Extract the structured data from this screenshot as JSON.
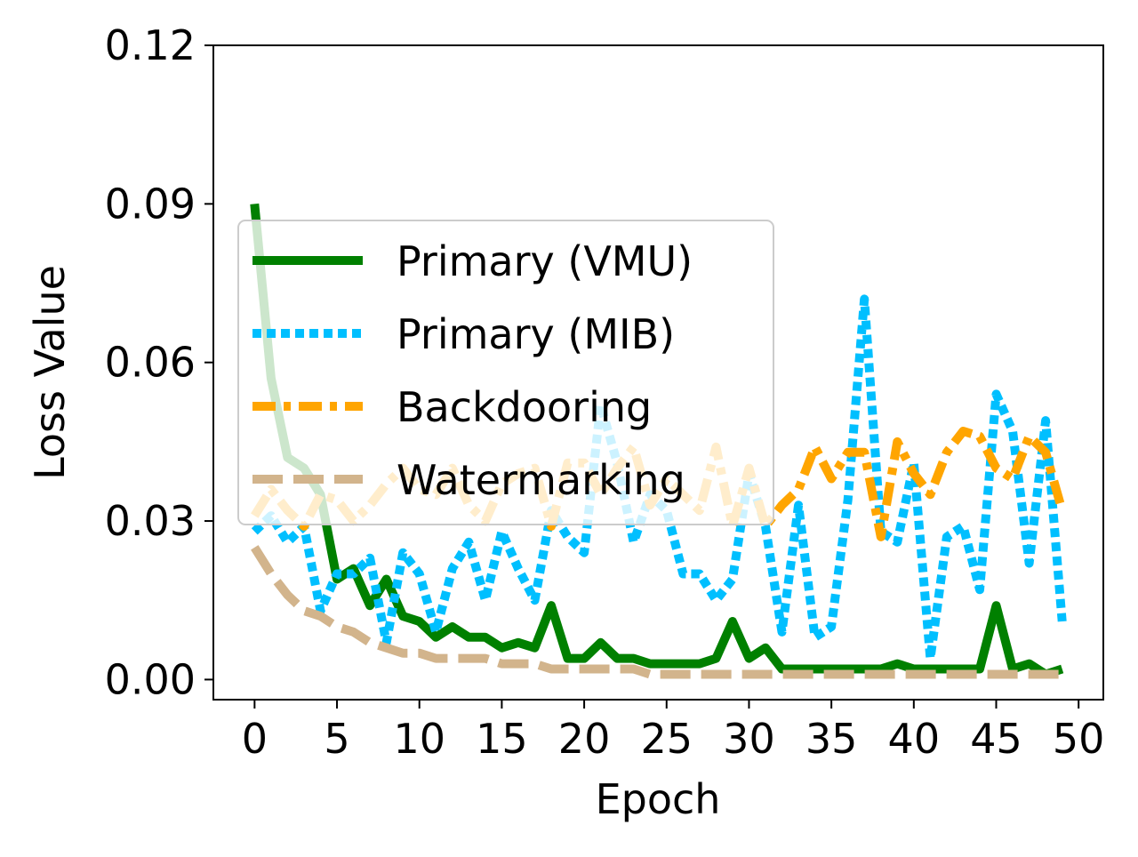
{
  "chart_data": {
    "type": "line",
    "title": "",
    "xlabel": "Epoch",
    "ylabel": "Loss Value",
    "xlim": [
      -2.5,
      51.5
    ],
    "ylim": [
      -0.0038,
      0.12
    ],
    "xticks": [
      0,
      5,
      10,
      15,
      20,
      25,
      30,
      35,
      40,
      45,
      50
    ],
    "xtick_labels": [
      "0",
      "5",
      "10",
      "15",
      "20",
      "25",
      "30",
      "35",
      "40",
      "45",
      "50"
    ],
    "yticks": [
      0.0,
      0.03,
      0.06,
      0.09,
      0.12
    ],
    "ytick_labels": [
      "0.00",
      "0.03",
      "0.06",
      "0.09",
      "0.12"
    ],
    "grid": false,
    "legend_position": "upper-left",
    "x": [
      0,
      1,
      2,
      3,
      4,
      5,
      6,
      7,
      8,
      9,
      10,
      11,
      12,
      13,
      14,
      15,
      16,
      17,
      18,
      19,
      20,
      21,
      22,
      23,
      24,
      25,
      26,
      27,
      28,
      29,
      30,
      31,
      32,
      33,
      34,
      35,
      36,
      37,
      38,
      39,
      40,
      41,
      42,
      43,
      44,
      45,
      46,
      47,
      48,
      49
    ],
    "series": [
      {
        "name": "Primary (VMU)",
        "color": "#008000",
        "dash": "solid",
        "values": [
          0.09,
          0.057,
          0.042,
          0.04,
          0.035,
          0.019,
          0.021,
          0.014,
          0.019,
          0.012,
          0.011,
          0.008,
          0.01,
          0.008,
          0.008,
          0.006,
          0.007,
          0.006,
          0.014,
          0.004,
          0.004,
          0.007,
          0.004,
          0.004,
          0.003,
          0.003,
          0.003,
          0.003,
          0.004,
          0.011,
          0.004,
          0.006,
          0.002,
          0.002,
          0.002,
          0.002,
          0.002,
          0.002,
          0.002,
          0.003,
          0.002,
          0.002,
          0.002,
          0.002,
          0.002,
          0.014,
          0.002,
          0.003,
          0.001,
          0.002
        ]
      },
      {
        "name": "Primary (MIB)",
        "color": "#00BFFF",
        "dash": "dotted",
        "values": [
          0.028,
          0.031,
          0.026,
          0.029,
          0.013,
          0.02,
          0.02,
          0.023,
          0.007,
          0.024,
          0.02,
          0.009,
          0.021,
          0.026,
          0.015,
          0.028,
          0.021,
          0.015,
          0.032,
          0.027,
          0.024,
          0.052,
          0.041,
          0.026,
          0.035,
          0.032,
          0.02,
          0.02,
          0.015,
          0.019,
          0.039,
          0.029,
          0.009,
          0.033,
          0.008,
          0.01,
          0.034,
          0.072,
          0.028,
          0.026,
          0.041,
          0.004,
          0.027,
          0.029,
          0.017,
          0.054,
          0.047,
          0.022,
          0.049,
          0.011
        ]
      },
      {
        "name": "Backdooring",
        "color": "#FFA500",
        "dash": "dashdot",
        "values": [
          0.031,
          0.036,
          0.032,
          0.029,
          0.035,
          0.034,
          0.03,
          0.033,
          0.037,
          0.04,
          0.036,
          0.035,
          0.04,
          0.033,
          0.03,
          0.037,
          0.039,
          0.04,
          0.029,
          0.041,
          0.041,
          0.035,
          0.04,
          0.044,
          0.033,
          0.038,
          0.035,
          0.032,
          0.044,
          0.029,
          0.04,
          0.029,
          0.033,
          0.036,
          0.044,
          0.038,
          0.043,
          0.043,
          0.027,
          0.045,
          0.039,
          0.035,
          0.043,
          0.047,
          0.046,
          0.04,
          0.038,
          0.046,
          0.043,
          0.032
        ]
      },
      {
        "name": "Watermarking",
        "color": "#D2B48C",
        "dash": "dashed",
        "values": [
          0.025,
          0.02,
          0.016,
          0.013,
          0.012,
          0.01,
          0.009,
          0.007,
          0.006,
          0.005,
          0.005,
          0.004,
          0.004,
          0.004,
          0.004,
          0.003,
          0.003,
          0.003,
          0.002,
          0.002,
          0.002,
          0.002,
          0.002,
          0.002,
          0.001,
          0.001,
          0.001,
          0.001,
          0.001,
          0.001,
          0.001,
          0.001,
          0.001,
          0.001,
          0.001,
          0.001,
          0.001,
          0.001,
          0.001,
          0.001,
          0.001,
          0.001,
          0.001,
          0.001,
          0.001,
          0.001,
          0.001,
          0.001,
          0.001,
          0.001
        ]
      }
    ]
  }
}
